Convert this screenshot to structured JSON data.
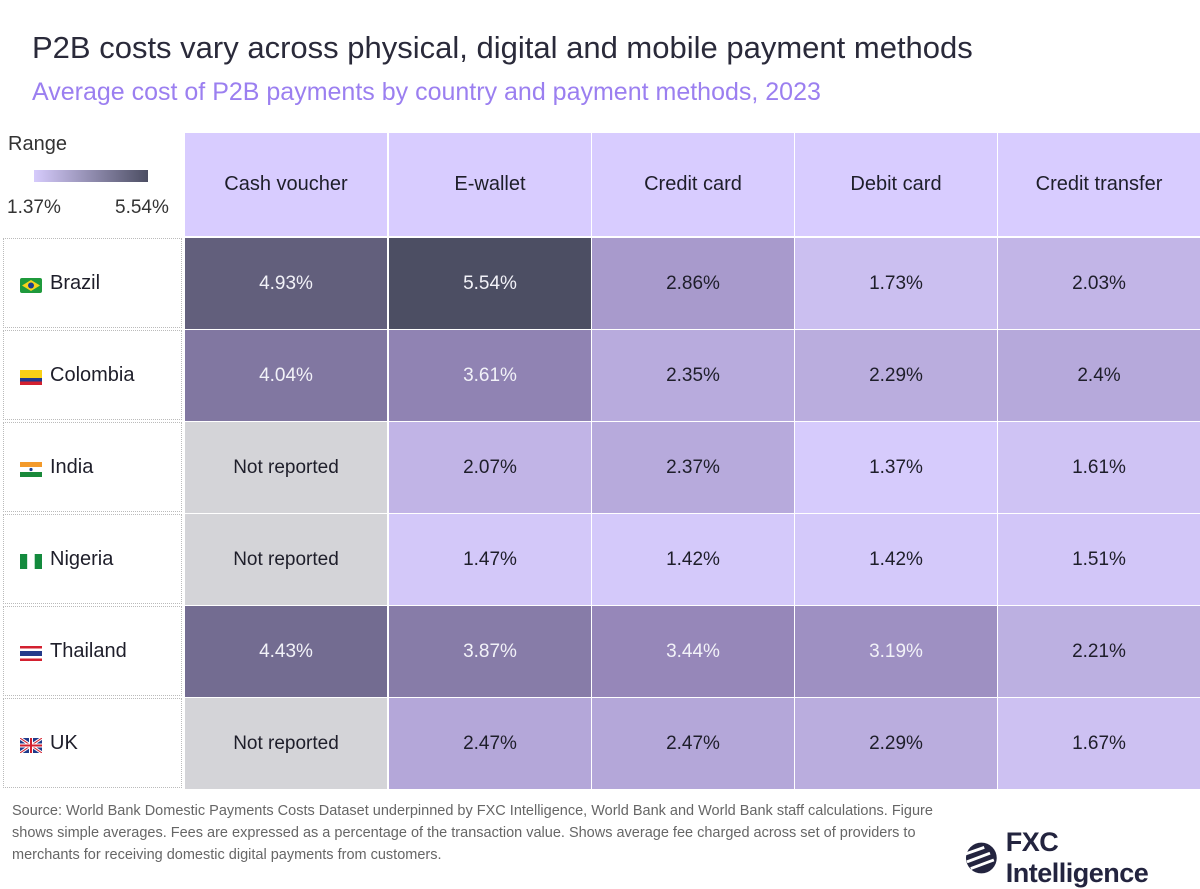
{
  "title": "P2B costs vary across physical, digital and mobile payment methods",
  "subtitle": "Average cost of P2B payments by country and payment methods, 2023",
  "legend": {
    "label": "Range",
    "min": "1.37%",
    "max": "5.54%",
    "low_color": "#d6cbfc",
    "high_color": "#4c4e63"
  },
  "chart_data": {
    "type": "heatmap",
    "columns": [
      "Cash voucher",
      "E-wallet",
      "Credit card",
      "Debit card",
      "Credit transfer"
    ],
    "rows": [
      {
        "country": "Brazil",
        "flag": "brazil-flag",
        "values": [
          "4.93%",
          "5.54%",
          "2.86%",
          "1.73%",
          "2.03%"
        ]
      },
      {
        "country": "Colombia",
        "flag": "colombia-flag",
        "values": [
          "4.04%",
          "3.61%",
          "2.35%",
          "2.29%",
          "2.4%"
        ]
      },
      {
        "country": "India",
        "flag": "india-flag",
        "values": [
          "Not reported",
          "2.07%",
          "2.37%",
          "1.37%",
          "1.61%"
        ]
      },
      {
        "country": "Nigeria",
        "flag": "nigeria-flag",
        "values": [
          "Not reported",
          "1.47%",
          "1.42%",
          "1.42%",
          "1.51%"
        ]
      },
      {
        "country": "Thailand",
        "flag": "thailand-flag",
        "values": [
          "4.43%",
          "3.87%",
          "3.44%",
          "3.19%",
          "2.21%"
        ]
      },
      {
        "country": "UK",
        "flag": "uk-flag",
        "values": [
          "Not reported",
          "2.47%",
          "2.47%",
          "2.29%",
          "1.67%"
        ]
      }
    ],
    "range": [
      1.37,
      5.54
    ],
    "not_reported_color": "#d4d4d8"
  },
  "source": "Source: World Bank Domestic Payments Costs Dataset underpinned by FXC Intelligence, World Bank and World Bank staff calculations. Figure shows simple averages. Fees are expressed as a percentage of the transaction value. Shows average fee charged across set of providers to merchants for receiving domestic digital payments from customers.",
  "logo": "FXC Intelligence"
}
